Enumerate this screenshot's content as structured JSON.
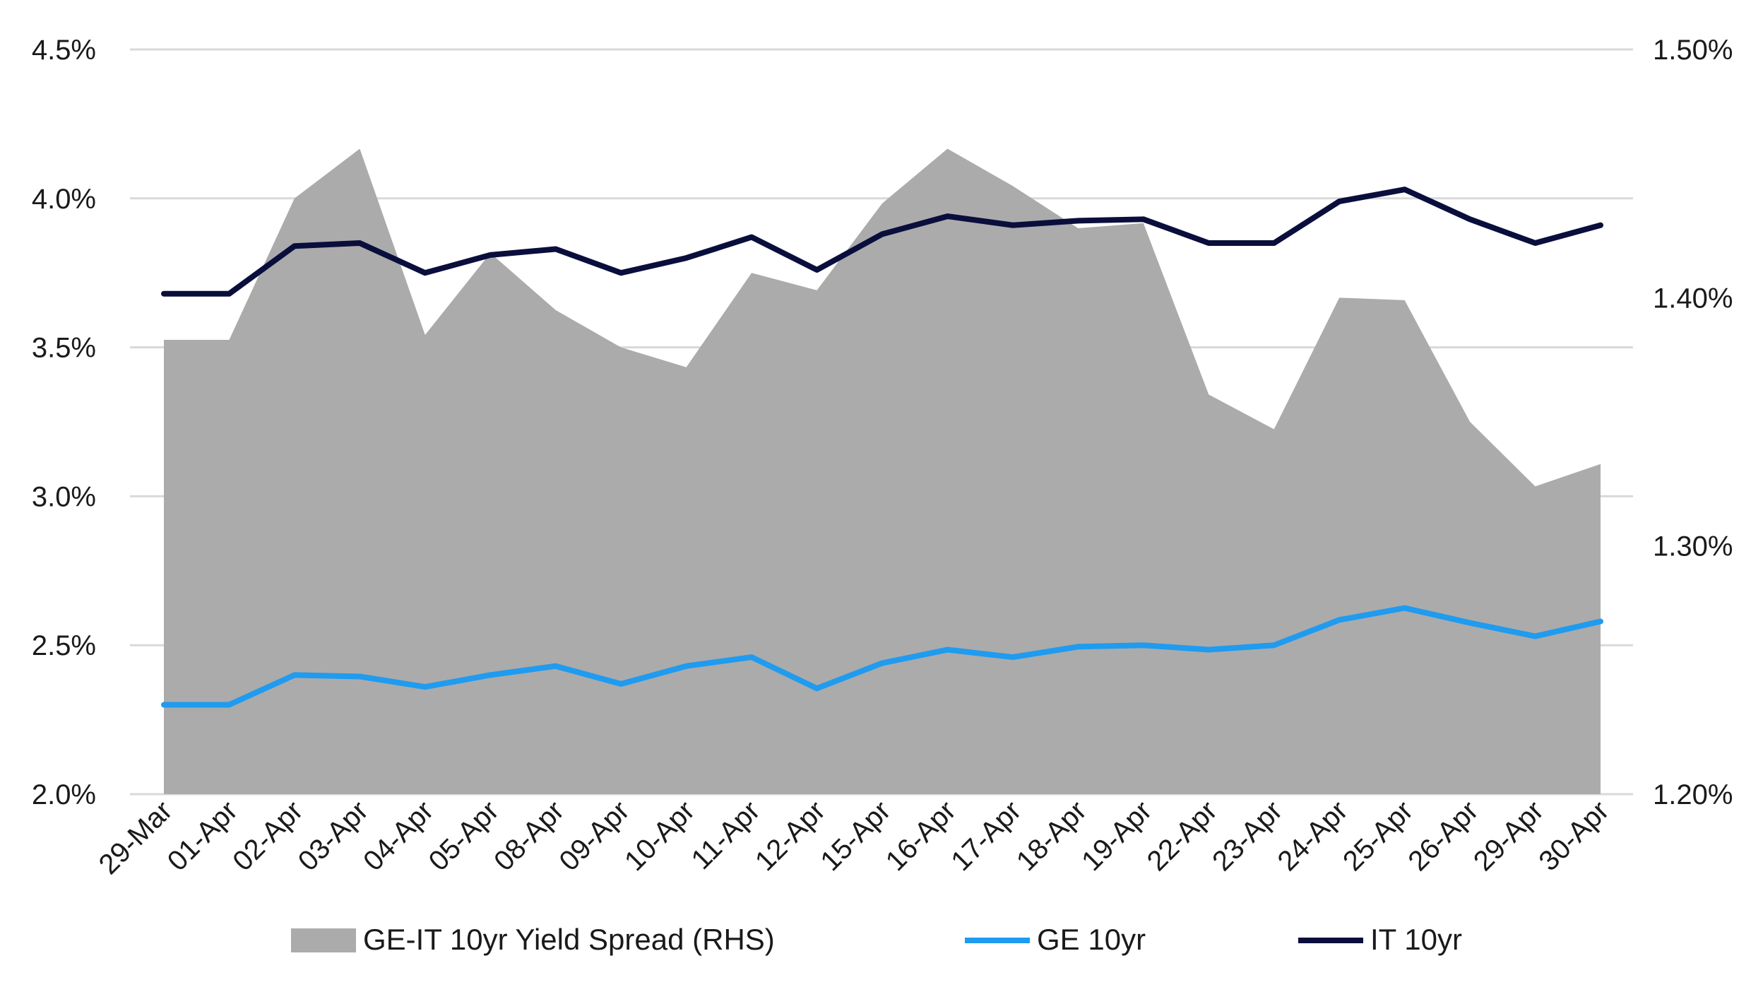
{
  "chart_data": {
    "type": "line",
    "x": [
      "29-Mar",
      "01-Apr",
      "02-Apr",
      "03-Apr",
      "04-Apr",
      "05-Apr",
      "08-Apr",
      "09-Apr",
      "10-Apr",
      "11-Apr",
      "12-Apr",
      "15-Apr",
      "16-Apr",
      "17-Apr",
      "18-Apr",
      "19-Apr",
      "22-Apr",
      "23-Apr",
      "24-Apr",
      "25-Apr",
      "26-Apr",
      "29-Apr",
      "30-Apr"
    ],
    "y_left": {
      "ylim": [
        2.0,
        4.5
      ],
      "ticks": [
        2.0,
        2.5,
        3.0,
        3.5,
        4.0,
        4.5
      ],
      "tick_labels": [
        "2.0%",
        "2.5%",
        "3.0%",
        "3.5%",
        "4.0%",
        "4.5%"
      ]
    },
    "y_right": {
      "ylim": [
        1.2,
        1.5
      ],
      "ticks": [
        1.2,
        1.3,
        1.4,
        1.5
      ],
      "tick_labels": [
        "1.20%",
        "1.30%",
        "1.40%",
        "1.50%"
      ]
    },
    "series": [
      {
        "name": "GE-IT 10yr Yield Spread (RHS)",
        "kind": "area",
        "axis": "right",
        "color": "#ababab",
        "values": [
          1.383,
          1.383,
          1.44,
          1.46,
          1.385,
          1.418,
          1.395,
          1.38,
          1.372,
          1.41,
          1.403,
          1.438,
          1.46,
          1.445,
          1.428,
          1.43,
          1.361,
          1.347,
          1.4,
          1.399,
          1.35,
          1.324,
          1.333
        ]
      },
      {
        "name": "GE 10yr",
        "kind": "line",
        "axis": "left",
        "color": "#1f9bf0",
        "values": [
          2.3,
          2.3,
          2.4,
          2.395,
          2.36,
          2.4,
          2.43,
          2.37,
          2.43,
          2.46,
          2.355,
          2.44,
          2.485,
          2.46,
          2.495,
          2.5,
          2.485,
          2.5,
          2.585,
          2.625,
          2.575,
          2.53,
          2.58
        ]
      },
      {
        "name": "IT 10yr",
        "kind": "line",
        "axis": "left",
        "color": "#0a0e3c",
        "values": [
          3.68,
          3.68,
          3.84,
          3.85,
          3.75,
          3.81,
          3.83,
          3.75,
          3.8,
          3.87,
          3.76,
          3.88,
          3.94,
          3.91,
          3.925,
          3.93,
          3.85,
          3.85,
          3.99,
          4.03,
          3.93,
          3.85,
          3.91
        ]
      }
    ],
    "grid": true,
    "legend_position": "bottom",
    "title": "",
    "xlabel": "",
    "ylabel": ""
  }
}
